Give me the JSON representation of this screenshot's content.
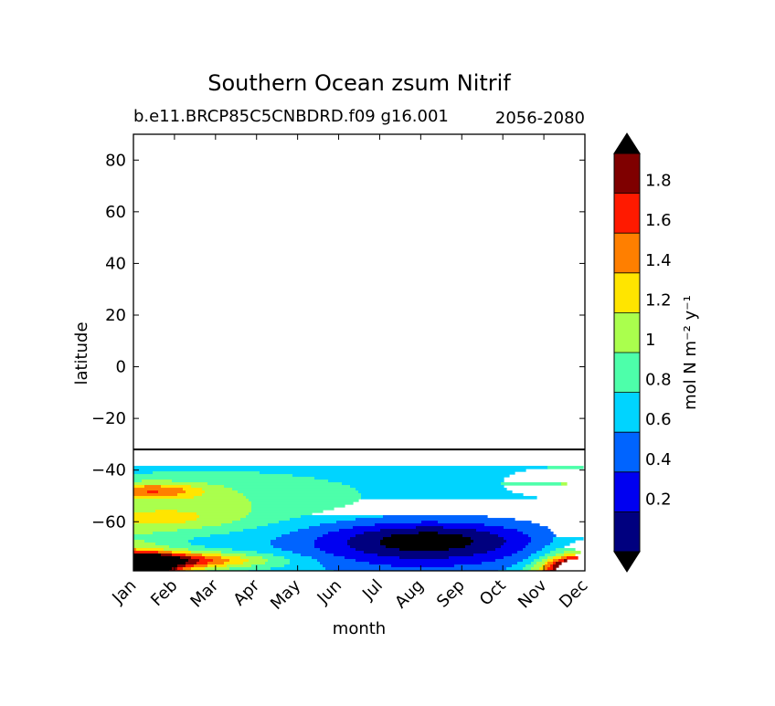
{
  "chart_data": {
    "type": "heatmap",
    "title": "Southern Ocean zsum Nitrif",
    "subtitle_left": "b.e11.BRCP85C5CNBDRD.f09 g16.001",
    "subtitle_right": "2056-2080",
    "xlabel": "month",
    "ylabel": "latitude",
    "x_tick_labels": [
      "Jan",
      "Feb",
      "Mar",
      "Apr",
      "May",
      "Jun",
      "Jul",
      "Aug",
      "Sep",
      "Oct",
      "Nov",
      "Dec"
    ],
    "y_ticks": [
      80,
      60,
      40,
      20,
      0,
      -20,
      -40,
      -60
    ],
    "y_tick_labels": [
      "80",
      "60",
      "40",
      "20",
      "0",
      "−20",
      "−40",
      "−60"
    ],
    "ylim": [
      -79,
      90
    ],
    "data_northern_limit_lat": -32,
    "colorbar": {
      "label": "mol N m⁻² y⁻¹",
      "levels": [
        0,
        0.2,
        0.4,
        0.6,
        0.8,
        1.0,
        1.2,
        1.4,
        1.6,
        1.8,
        2.0
      ],
      "tick_values": [
        0.2,
        0.4,
        0.6,
        0.8,
        1.0,
        1.2,
        1.4,
        1.6,
        1.8
      ],
      "tick_labels": [
        "0.2",
        "0.4",
        "0.6",
        "0.8",
        "1",
        "1.2",
        "1.4",
        "1.6",
        "1.8"
      ],
      "colors": [
        "#00007f",
        "#0000f1",
        "#0064ff",
        "#00d4ff",
        "#4dffaa",
        "#aaff4d",
        "#ffe500",
        "#ff7f00",
        "#ff1a00",
        "#7f0000"
      ],
      "under_color": "#000000",
      "over_color": "#000000"
    }
  }
}
